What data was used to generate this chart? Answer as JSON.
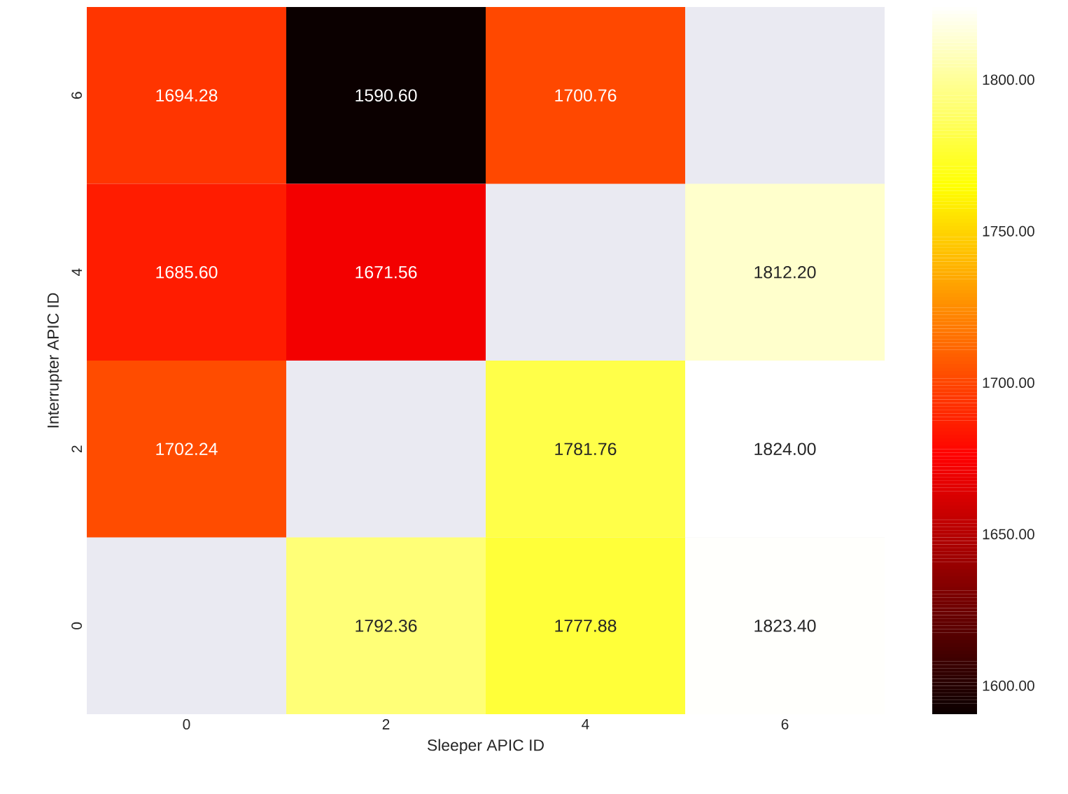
{
  "chart_data": {
    "type": "heatmap",
    "xlabel": "Sleeper APIC ID",
    "ylabel": "Interrupter APIC ID",
    "categories": [
      "0",
      "2",
      "4",
      "6"
    ],
    "y_categories": [
      "6",
      "4",
      "2",
      "0"
    ],
    "cells": [
      [
        1694.28,
        1590.6,
        1700.76,
        null
      ],
      [
        1685.6,
        1671.56,
        null,
        1812.2
      ],
      [
        1702.24,
        null,
        1781.76,
        1824.0
      ],
      [
        null,
        1792.36,
        1777.88,
        1823.4
      ]
    ],
    "cell_labels": [
      [
        "1694.28",
        "1590.60",
        "1700.76",
        null
      ],
      [
        "1685.60",
        "1671.56",
        null,
        "1812.20"
      ],
      [
        "1702.24",
        null,
        "1781.76",
        "1824.00"
      ],
      [
        null,
        "1792.36",
        "1777.88",
        "1823.40"
      ]
    ],
    "clim": [
      1590.6,
      1824.0
    ],
    "cticks": [
      {
        "value": 1600,
        "label": "1600.00"
      },
      {
        "value": 1650,
        "label": "1650.00"
      },
      {
        "value": 1700,
        "label": "1700.00"
      },
      {
        "value": 1750,
        "label": "1750.00"
      },
      {
        "value": 1800,
        "label": "1800.00"
      }
    ]
  }
}
